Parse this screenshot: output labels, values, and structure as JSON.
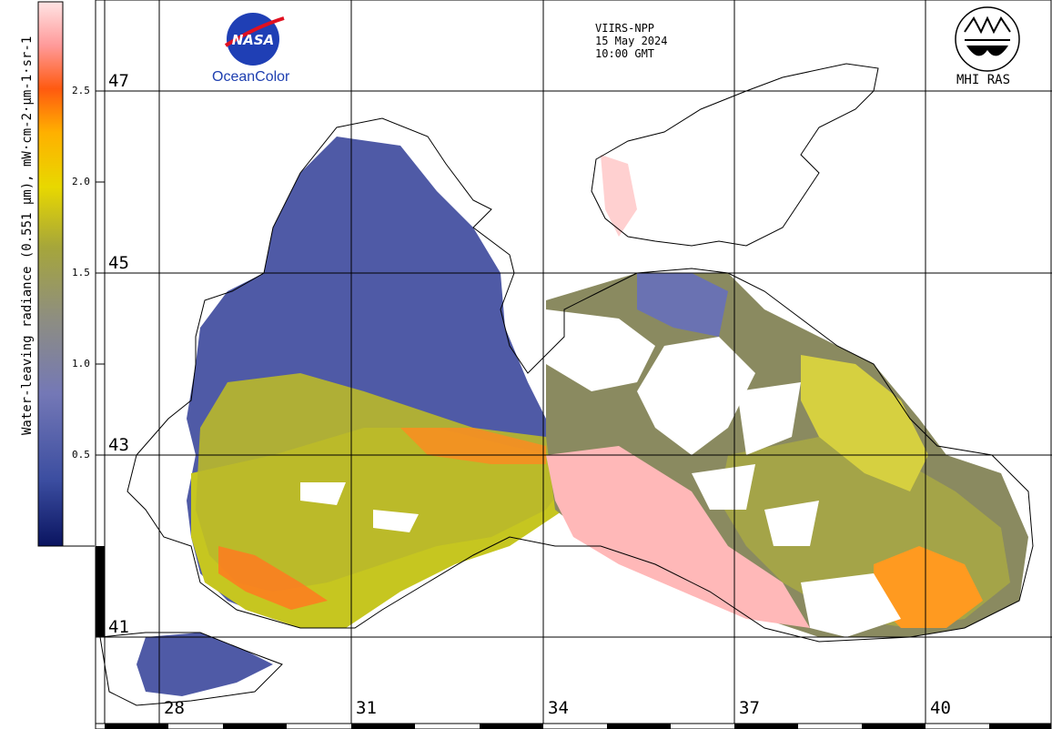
{
  "colorbar": {
    "title": "Water-leaving radiance (0.551 µm), mW·cm-2·µm-1·sr-1",
    "ticks": [
      "2.5",
      "2.0",
      "1.5",
      "1.0",
      "0.5"
    ],
    "colors": [
      "#0a1460",
      "#3b4da0",
      "#7077b8",
      "#8f8f78",
      "#a8a820",
      "#e0d000",
      "#ff9a00",
      "#ff4a10",
      "#ff9a9a",
      "#ffd6d6"
    ]
  },
  "header": {
    "satellite": "VIIRS-NPP",
    "date": "15 May 2024",
    "time": "10:00 GMT"
  },
  "logos": {
    "left_text": "OceanColor",
    "left_mark": "NASA",
    "right_text": "MHI RAS"
  },
  "grid": {
    "latitudes": [
      "47",
      "45",
      "43",
      "41"
    ],
    "longitudes": [
      "28",
      "31",
      "34",
      "37",
      "40"
    ]
  },
  "colors": {
    "land": "#ffffff",
    "cloud": "#ffffff",
    "coast": "#000000",
    "grid": "#000000",
    "low": "#4a56a6",
    "mid": "#9a9a58",
    "high": "#d8d800",
    "orange": "#ff8c10",
    "pink": "#ffb4b4"
  }
}
